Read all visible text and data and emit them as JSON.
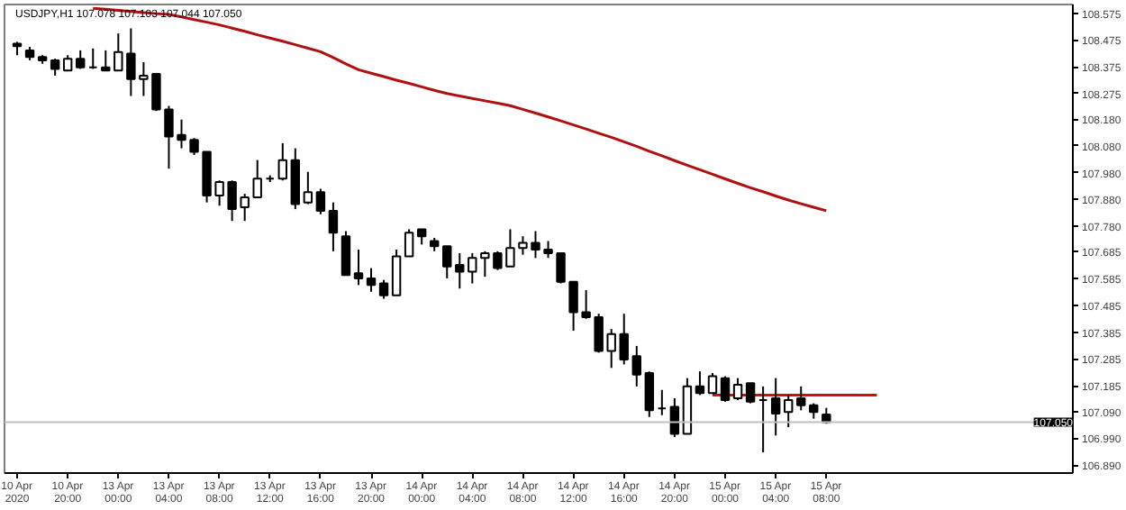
{
  "chart_data": {
    "type": "candlestick",
    "title": "USDJPY,H1 107.078 107.103 107.044 107.050",
    "categories": [
      "10 Apr 2020",
      null,
      null,
      null,
      "10 Apr 20:00",
      null,
      null,
      null,
      "13 Apr 00:00",
      null,
      null,
      null,
      "13 Apr 04:00",
      null,
      null,
      null,
      "13 Apr 08:00",
      null,
      null,
      null,
      "13 Apr 12:00",
      null,
      null,
      null,
      "13 Apr 16:00",
      null,
      null,
      null,
      "13 Apr 20:00",
      null,
      null,
      null,
      "14 Apr 00:00",
      null,
      null,
      null,
      "14 Apr 04:00",
      null,
      null,
      null,
      "14 Apr 08:00",
      null,
      null,
      null,
      "14 Apr 12:00",
      null,
      null,
      null,
      "14 Apr 16:00",
      null,
      null,
      null,
      "14 Apr 20:00",
      null,
      null,
      null,
      "15 Apr 00:00",
      null,
      null,
      null,
      "15 Apr 04:00",
      null,
      null,
      null,
      "15 Apr 08:00",
      null,
      null,
      null,
      null,
      null,
      null,
      null,
      null,
      null,
      null,
      null,
      null,
      null,
      null,
      null,
      null,
      null,
      null,
      null
    ],
    "ohlc": [
      [
        108.461,
        108.468,
        108.418,
        108.452
      ],
      [
        108.436,
        108.449,
        108.399,
        108.411
      ],
      [
        108.411,
        108.418,
        108.386,
        108.399
      ],
      [
        108.399,
        108.405,
        108.342,
        108.367
      ],
      [
        108.361,
        108.418,
        108.361,
        108.405
      ],
      [
        108.405,
        108.436,
        108.367,
        108.373
      ],
      [
        108.373,
        108.443,
        108.367,
        108.373
      ],
      [
        108.373,
        108.436,
        108.361,
        108.361
      ],
      [
        108.361,
        108.499,
        108.361,
        108.43
      ],
      [
        108.424,
        108.518,
        108.266,
        108.329
      ],
      [
        108.329,
        108.392,
        108.266,
        108.342
      ],
      [
        108.348,
        108.348,
        108.21,
        108.216
      ],
      [
        108.216,
        108.229,
        107.995,
        108.115
      ],
      [
        108.121,
        108.178,
        108.071,
        108.102
      ],
      [
        108.102,
        108.109,
        108.046,
        108.058
      ],
      [
        108.058,
        108.058,
        107.869,
        107.895
      ],
      [
        107.895,
        107.951,
        107.857,
        107.945
      ],
      [
        107.945,
        107.951,
        107.8,
        107.844
      ],
      [
        107.851,
        107.901,
        107.8,
        107.888
      ],
      [
        107.888,
        108.027,
        107.888,
        107.958
      ],
      [
        107.958,
        107.97,
        107.945,
        107.958
      ],
      [
        107.958,
        108.09,
        107.951,
        108.027
      ],
      [
        108.027,
        108.071,
        107.844,
        107.863
      ],
      [
        107.869,
        107.983,
        107.863,
        107.907
      ],
      [
        107.907,
        107.92,
        107.825,
        107.838
      ],
      [
        107.838,
        107.869,
        107.687,
        107.756
      ],
      [
        107.743,
        107.762,
        107.598,
        107.598
      ],
      [
        107.605,
        107.693,
        107.561,
        107.586
      ],
      [
        107.586,
        107.624,
        107.536,
        107.561
      ],
      [
        107.567,
        107.58,
        107.51,
        107.523
      ],
      [
        107.523,
        107.693,
        107.523,
        107.668
      ],
      [
        107.668,
        107.769,
        107.668,
        107.756
      ],
      [
        107.769,
        107.769,
        107.712,
        107.743
      ],
      [
        107.725,
        107.737,
        107.687,
        107.706
      ],
      [
        107.706,
        107.706,
        107.586,
        107.63
      ],
      [
        107.636,
        107.68,
        107.548,
        107.611
      ],
      [
        107.611,
        107.68,
        107.567,
        107.662
      ],
      [
        107.662,
        107.687,
        107.592,
        107.68
      ],
      [
        107.68,
        107.687,
        107.617,
        107.624
      ],
      [
        107.63,
        107.769,
        107.63,
        107.699
      ],
      [
        107.699,
        107.743,
        107.674,
        107.718
      ],
      [
        107.718,
        107.762,
        107.662,
        107.693
      ],
      [
        107.693,
        107.725,
        107.662,
        107.68
      ],
      [
        107.68,
        107.68,
        107.567,
        107.573
      ],
      [
        107.573,
        107.573,
        107.391,
        107.46
      ],
      [
        107.46,
        107.542,
        107.435,
        107.441
      ],
      [
        107.441,
        107.454,
        107.309,
        107.315
      ],
      [
        107.315,
        107.397,
        107.252,
        107.378
      ],
      [
        107.378,
        107.454,
        107.265,
        107.283
      ],
      [
        107.296,
        107.334,
        107.183,
        107.227
      ],
      [
        107.233,
        107.239,
        107.069,
        107.094
      ],
      [
        107.101,
        107.17,
        107.076,
        107.101
      ],
      [
        107.107,
        107.139,
        106.994,
        107.006
      ],
      [
        107.006,
        107.214,
        107.006,
        107.183
      ],
      [
        107.183,
        107.239,
        107.151,
        107.158
      ],
      [
        107.158,
        107.233,
        107.158,
        107.221
      ],
      [
        107.214,
        107.221,
        107.126,
        107.132
      ],
      [
        107.139,
        107.214,
        107.132,
        107.189
      ],
      [
        107.195,
        107.195,
        107.12,
        107.126
      ],
      [
        107.132,
        107.183,
        106.937,
        107.132
      ],
      [
        107.139,
        107.214,
        107.0,
        107.082
      ],
      [
        107.088,
        107.151,
        107.031,
        107.132
      ],
      [
        107.139,
        107.183,
        107.094,
        107.113
      ],
      [
        107.113,
        107.12,
        107.063,
        107.088
      ],
      [
        107.078,
        107.103,
        107.044,
        107.05
      ],
      null,
      null,
      null,
      null,
      null,
      null,
      null,
      null,
      null,
      null,
      null,
      null,
      null,
      null,
      null,
      null,
      null,
      null,
      null
    ],
    "series": [
      {
        "type": "line",
        "color": "#b01010",
        "values": [
          null,
          null,
          null,
          null,
          null,
          null,
          108.593,
          108.589,
          108.585,
          108.581,
          108.577,
          108.573,
          108.57,
          108.561,
          108.551,
          108.541,
          108.531,
          108.519,
          108.507,
          108.494,
          108.482,
          108.47,
          108.457,
          108.444,
          108.431,
          108.409,
          108.386,
          108.364,
          108.351,
          108.338,
          108.325,
          108.313,
          108.3,
          108.287,
          108.275,
          108.266,
          108.257,
          108.248,
          108.239,
          108.23,
          108.216,
          108.202,
          108.188,
          108.173,
          108.158,
          108.143,
          108.127,
          108.112,
          108.095,
          108.078,
          108.06,
          108.043,
          108.025,
          108.008,
          107.991,
          107.974,
          107.957,
          107.94,
          107.924,
          107.909,
          107.893,
          107.878,
          107.864,
          107.851,
          107.838,
          null,
          null,
          null,
          null,
          null,
          null,
          null,
          null,
          null,
          null,
          null,
          null,
          null,
          null,
          null,
          null,
          null,
          null,
          null
        ]
      },
      {
        "type": "line",
        "color": "#d01010",
        "values": [
          null,
          null,
          null,
          null,
          null,
          null,
          null,
          null,
          null,
          null,
          null,
          null,
          null,
          null,
          null,
          null,
          null,
          null,
          null,
          null,
          null,
          null,
          null,
          null,
          null,
          null,
          null,
          null,
          null,
          null,
          null,
          null,
          null,
          null,
          null,
          null,
          null,
          null,
          null,
          null,
          null,
          null,
          null,
          null,
          null,
          null,
          null,
          null,
          null,
          null,
          null,
          null,
          null,
          null,
          null,
          107.151,
          107.151,
          107.151,
          107.151,
          107.151,
          107.151,
          107.151,
          107.151,
          107.151,
          107.151,
          107.151,
          107.151,
          107.151,
          107.151,
          null,
          null,
          null,
          null,
          null,
          null,
          null,
          null,
          null,
          null,
          null,
          null,
          null,
          null,
          null
        ]
      }
    ],
    "ref_lines": [
      {
        "axis": "y",
        "value": 107.05,
        "label": "107.050",
        "color": "#c0c0c0"
      }
    ],
    "ylim": [
      106.86,
      108.607
    ],
    "yticks": [
      {
        "value": 108.575,
        "label": "108.575"
      },
      {
        "value": 108.475,
        "label": "108.475"
      },
      {
        "value": 108.375,
        "label": "108.375"
      },
      {
        "value": 108.275,
        "label": "108.275"
      },
      {
        "value": 108.18,
        "label": "108.180"
      },
      {
        "value": 108.08,
        "label": "108.080"
      },
      {
        "value": 107.98,
        "label": "107.980"
      },
      {
        "value": 107.88,
        "label": "107.880"
      },
      {
        "value": 107.78,
        "label": "107.780"
      },
      {
        "value": 107.685,
        "label": "107.685"
      },
      {
        "value": 107.585,
        "label": "107.585"
      },
      {
        "value": 107.485,
        "label": "107.485"
      },
      {
        "value": 107.385,
        "label": "107.385"
      },
      {
        "value": 107.285,
        "label": "107.285"
      },
      {
        "value": 107.185,
        "label": "107.185"
      },
      {
        "value": 107.09,
        "label": "107.090"
      },
      {
        "value": 106.99,
        "label": "106.990"
      },
      {
        "value": 106.89,
        "label": "106.890"
      }
    ],
    "grid": false
  }
}
